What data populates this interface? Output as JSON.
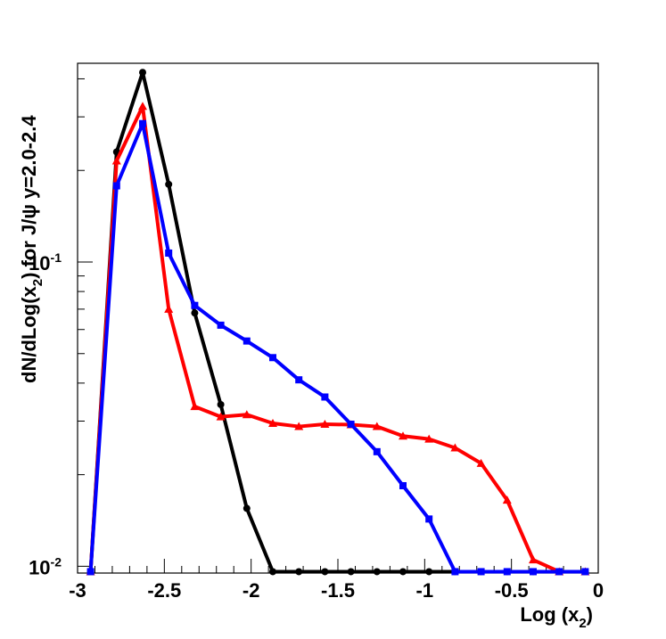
{
  "chart_data": {
    "type": "line",
    "title": "",
    "xlabel": {
      "prefix": "Log (x",
      "sub": "2",
      "suffix": ")"
    },
    "ylabel": {
      "prefix": "dN/dLog(x",
      "sub": "2",
      "suffix": ") for J/ψ y=2.0-2.4"
    },
    "xlim": [
      -3.0,
      0.0
    ],
    "ylim": [
      0.0095,
      0.45
    ],
    "yscale": "log",
    "grid": false,
    "legend": "none",
    "x_ticks": [
      "-3",
      "-2.5",
      "-2",
      "-1.5",
      "-1",
      "-0.5",
      "0"
    ],
    "x_tick_values": [
      -3,
      -2.5,
      -2,
      -1.5,
      -1,
      -0.5,
      0
    ],
    "y_ticks": [
      {
        "value": 0.01,
        "base": "10",
        "exp": "-2"
      },
      {
        "value": 0.1,
        "base": "10",
        "exp": "-1"
      }
    ],
    "series": [
      {
        "color": "#000000",
        "marker": "circle",
        "x": [
          -2.925,
          -2.775,
          -2.625,
          -2.475,
          -2.325,
          -2.175,
          -2.025,
          -1.875,
          -1.725,
          -1.575,
          -1.425,
          -1.275,
          -1.125,
          -0.975,
          -0.825,
          -0.675,
          -0.525,
          -0.375,
          -0.225,
          -0.075
        ],
        "y": [
          0.0096,
          0.23,
          0.42,
          0.18,
          0.068,
          0.034,
          0.0155,
          0.0096,
          0.0096,
          0.0096,
          0.0096,
          0.0096,
          0.0096,
          0.0096,
          0.0096,
          0.0096,
          0.0096,
          0.0096,
          0.0096,
          0.0096
        ]
      },
      {
        "color": "#ff0000",
        "marker": "triangle",
        "x": [
          -2.925,
          -2.775,
          -2.625,
          -2.475,
          -2.325,
          -2.175,
          -2.025,
          -1.875,
          -1.725,
          -1.575,
          -1.425,
          -1.275,
          -1.125,
          -0.975,
          -0.825,
          -0.675,
          -0.525,
          -0.375,
          -0.225,
          -0.075
        ],
        "y": [
          0.0096,
          0.215,
          0.325,
          0.07,
          0.0335,
          0.031,
          0.0315,
          0.0295,
          0.0288,
          0.0293,
          0.0292,
          0.0288,
          0.0268,
          0.0262,
          0.0245,
          0.0218,
          0.0165,
          0.0105,
          0.0096,
          0.0096
        ]
      },
      {
        "color": "#0000ff",
        "marker": "square",
        "x": [
          -2.925,
          -2.775,
          -2.625,
          -2.475,
          -2.325,
          -2.175,
          -2.025,
          -1.875,
          -1.725,
          -1.575,
          -1.425,
          -1.275,
          -1.125,
          -0.975,
          -0.825,
          -0.675,
          -0.525,
          -0.375,
          -0.225,
          -0.075
        ],
        "y": [
          0.0096,
          0.178,
          0.285,
          0.107,
          0.072,
          0.062,
          0.055,
          0.0485,
          0.041,
          0.036,
          0.0293,
          0.0238,
          0.0184,
          0.0143,
          0.0096,
          0.0096,
          0.0096,
          0.0096,
          0.0096,
          0.0096
        ]
      }
    ]
  }
}
